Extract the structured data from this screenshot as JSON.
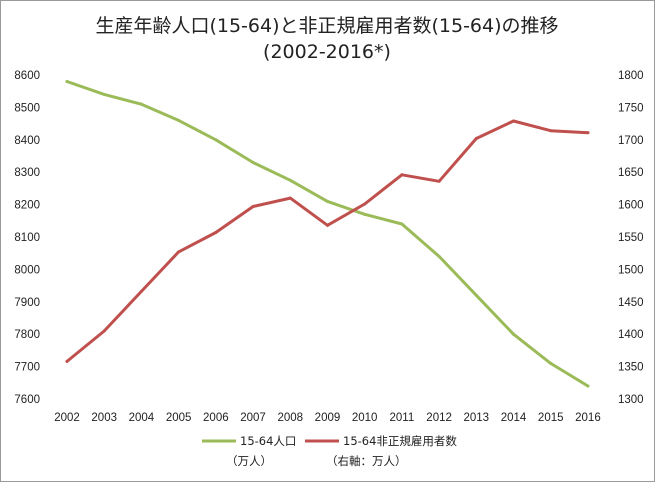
{
  "chart_data": {
    "type": "line",
    "title_line1": "生産年齢人口(15-64)と非正規雇用者数(15-64)の推移",
    "title_line2": "(2002-2016*)",
    "x": [
      "2002",
      "2003",
      "2004",
      "2005",
      "2006",
      "2007",
      "2008",
      "2009",
      "2010",
      "2011",
      "2012",
      "2013",
      "2014",
      "2015",
      "2016"
    ],
    "left_axis": {
      "min": 7600,
      "max": 8600,
      "ticks": [
        "8600",
        "8500",
        "8400",
        "8300",
        "8200",
        "8100",
        "8000",
        "7900",
        "7800",
        "7700",
        "7600"
      ]
    },
    "right_axis": {
      "min": 1300,
      "max": 1800,
      "ticks": [
        "1800",
        "1750",
        "1700",
        "1650",
        "1600",
        "1550",
        "1500",
        "1450",
        "1400",
        "1350",
        "1300"
      ]
    },
    "series": [
      {
        "name": "15-64人口",
        "unit_note": "（万人）",
        "axis": "left",
        "color": "#9bbb59",
        "values": [
          8580,
          8540,
          8510,
          8460,
          8400,
          8330,
          8275,
          8210,
          8170,
          8140,
          8040,
          7920,
          7800,
          7710,
          7640
        ]
      },
      {
        "name": "15-64非正規雇用者数",
        "unit_note": "（右軸：万人）",
        "axis": "right",
        "color": "#c0504d",
        "values": [
          1358,
          1405,
          1466,
          1527,
          1557,
          1597,
          1610,
          1568,
          1601,
          1646,
          1636,
          1702,
          1729,
          1714,
          1711
        ]
      }
    ],
    "gridlines": false,
    "legend_position": "bottom"
  }
}
